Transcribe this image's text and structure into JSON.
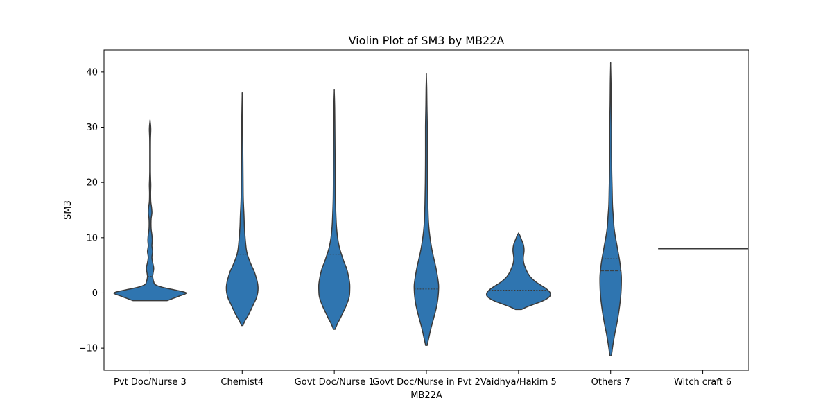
{
  "chart_data": {
    "type": "violin",
    "title": "Violin Plot of SM3 by MB22A",
    "xlabel": "MB22A",
    "ylabel": "SM3",
    "ylim": [
      -14,
      44
    ],
    "yticks": [
      -10,
      0,
      10,
      20,
      30,
      40
    ],
    "categories": [
      "Pvt Doc/Nurse 3",
      "Chemist4",
      "Govt Doc/Nurse 1",
      "Govt Doc/Nurse in Pvt 2",
      "Vaidhya/Hakim 5",
      "Others 7",
      "Witch craft 6"
    ],
    "fill_color": "#2f75b0",
    "edge_color": "#3a3a3a",
    "violins": [
      {
        "category": "Pvt Doc/Nurse 3",
        "profile": [
          [
            -1.4,
            0.46
          ],
          [
            -1.0,
            0.62
          ],
          [
            -0.5,
            0.82
          ],
          [
            0,
            0.98
          ],
          [
            0.5,
            0.7
          ],
          [
            1.0,
            0.34
          ],
          [
            1.5,
            0.14
          ],
          [
            2.0,
            0.1
          ],
          [
            2.5,
            0.08
          ],
          [
            3.0,
            0.07
          ],
          [
            3.5,
            0.08
          ],
          [
            4.5,
            0.1
          ],
          [
            5.5,
            0.07
          ],
          [
            6.5,
            0.05
          ],
          [
            7.5,
            0.07
          ],
          [
            8.5,
            0.05
          ],
          [
            9.5,
            0.06
          ],
          [
            10.5,
            0.05
          ],
          [
            11.5,
            0.03
          ],
          [
            12.5,
            0.025
          ],
          [
            13.5,
            0.03
          ],
          [
            14.5,
            0.05
          ],
          [
            15.5,
            0.04
          ],
          [
            16.5,
            0.02
          ],
          [
            18,
            0.015
          ],
          [
            19.5,
            0.02
          ],
          [
            20.5,
            0.015
          ],
          [
            22,
            0.01
          ],
          [
            24,
            0.01
          ],
          [
            26,
            0.01
          ],
          [
            28,
            0.012
          ],
          [
            29.5,
            0.02
          ],
          [
            30.3,
            0.015
          ],
          [
            31.2,
            0.0
          ]
        ],
        "q1": 0,
        "median": 0,
        "q3": 3
      },
      {
        "category": "Chemist4",
        "profile": [
          [
            -5.9,
            0.02
          ],
          [
            -5,
            0.08
          ],
          [
            -4,
            0.17
          ],
          [
            -3,
            0.24
          ],
          [
            -2,
            0.31
          ],
          [
            -1,
            0.38
          ],
          [
            0,
            0.42
          ],
          [
            1,
            0.43
          ],
          [
            2,
            0.41
          ],
          [
            3,
            0.37
          ],
          [
            4,
            0.32
          ],
          [
            5,
            0.25
          ],
          [
            6,
            0.19
          ],
          [
            7,
            0.14
          ],
          [
            8,
            0.11
          ],
          [
            10,
            0.08
          ],
          [
            12,
            0.06
          ],
          [
            14,
            0.05
          ],
          [
            17,
            0.03
          ],
          [
            20,
            0.025
          ],
          [
            24,
            0.02
          ],
          [
            28,
            0.015
          ],
          [
            32,
            0.01
          ],
          [
            35.8,
            0.0
          ]
        ],
        "q1": 0,
        "median": 0,
        "q3": 7
      },
      {
        "category": "Govt Doc/Nurse 1",
        "profile": [
          [
            -6.6,
            0.02
          ],
          [
            -5.5,
            0.09
          ],
          [
            -4.5,
            0.17
          ],
          [
            -3.5,
            0.24
          ],
          [
            -2.5,
            0.31
          ],
          [
            -1.5,
            0.37
          ],
          [
            -0.5,
            0.41
          ],
          [
            0.5,
            0.42
          ],
          [
            1.5,
            0.42
          ],
          [
            2.5,
            0.4
          ],
          [
            3.5,
            0.37
          ],
          [
            4.5,
            0.33
          ],
          [
            5.5,
            0.27
          ],
          [
            6.5,
            0.22
          ],
          [
            7.5,
            0.17
          ],
          [
            8.5,
            0.13
          ],
          [
            10,
            0.09
          ],
          [
            12,
            0.06
          ],
          [
            14,
            0.045
          ],
          [
            17,
            0.03
          ],
          [
            21,
            0.025
          ],
          [
            26,
            0.02
          ],
          [
            31,
            0.015
          ],
          [
            34,
            0.01
          ],
          [
            36.5,
            0.0
          ]
        ],
        "q1": 0,
        "median": 0,
        "q3": 7
      },
      {
        "category": "Govt Doc/Nurse in Pvt 2",
        "profile": [
          [
            -9.5,
            0.02
          ],
          [
            -8,
            0.07
          ],
          [
            -6.5,
            0.12
          ],
          [
            -5,
            0.18
          ],
          [
            -3.5,
            0.24
          ],
          [
            -2,
            0.29
          ],
          [
            -0.5,
            0.32
          ],
          [
            0.5,
            0.33
          ],
          [
            1.5,
            0.33
          ],
          [
            3,
            0.3
          ],
          [
            4.5,
            0.26
          ],
          [
            6,
            0.21
          ],
          [
            7.5,
            0.16
          ],
          [
            9,
            0.12
          ],
          [
            11,
            0.08
          ],
          [
            13,
            0.055
          ],
          [
            16,
            0.04
          ],
          [
            20,
            0.03
          ],
          [
            25,
            0.025
          ],
          [
            30,
            0.025
          ],
          [
            34,
            0.015
          ],
          [
            37,
            0.01
          ],
          [
            39.4,
            0.0
          ]
        ],
        "q1": 0,
        "median": 0,
        "q3": 0.7
      },
      {
        "category": "Vaidhya/Hakim 5",
        "profile": [
          [
            -3,
            0.08
          ],
          [
            -2.5,
            0.24
          ],
          [
            -2,
            0.44
          ],
          [
            -1.5,
            0.64
          ],
          [
            -1,
            0.78
          ],
          [
            -0.5,
            0.86
          ],
          [
            0,
            0.86
          ],
          [
            0.5,
            0.8
          ],
          [
            1,
            0.7
          ],
          [
            1.5,
            0.58
          ],
          [
            2,
            0.47
          ],
          [
            2.5,
            0.38
          ],
          [
            3,
            0.31
          ],
          [
            3.5,
            0.26
          ],
          [
            4,
            0.22
          ],
          [
            4.5,
            0.19
          ],
          [
            5,
            0.16
          ],
          [
            5.5,
            0.14
          ],
          [
            6,
            0.13
          ],
          [
            6.5,
            0.13
          ],
          [
            7,
            0.14
          ],
          [
            7.5,
            0.15
          ],
          [
            8,
            0.15
          ],
          [
            8.5,
            0.14
          ],
          [
            9,
            0.12
          ],
          [
            9.5,
            0.09
          ],
          [
            10,
            0.06
          ],
          [
            10.5,
            0.03
          ],
          [
            10.8,
            0.0
          ]
        ],
        "q1": 0,
        "median": 0,
        "q3": 0.5
      },
      {
        "category": "Others 7",
        "profile": [
          [
            -11.4,
            0.02
          ],
          [
            -9.5,
            0.06
          ],
          [
            -7.5,
            0.11
          ],
          [
            -5.5,
            0.17
          ],
          [
            -3.5,
            0.22
          ],
          [
            -1.5,
            0.26
          ],
          [
            0,
            0.28
          ],
          [
            1.5,
            0.29
          ],
          [
            3,
            0.29
          ],
          [
            4.5,
            0.27
          ],
          [
            6,
            0.24
          ],
          [
            7.5,
            0.2
          ],
          [
            9,
            0.16
          ],
          [
            10.5,
            0.12
          ],
          [
            12,
            0.09
          ],
          [
            14,
            0.07
          ],
          [
            16,
            0.05
          ],
          [
            19,
            0.04
          ],
          [
            22,
            0.03
          ],
          [
            26,
            0.025
          ],
          [
            30,
            0.025
          ],
          [
            34,
            0.015
          ],
          [
            38,
            0.01
          ],
          [
            41.3,
            0.0
          ]
        ],
        "q1": 0,
        "median": 4,
        "q3": 6.2
      },
      {
        "category": "Witch craft 6",
        "constant_value": 8
      }
    ]
  }
}
